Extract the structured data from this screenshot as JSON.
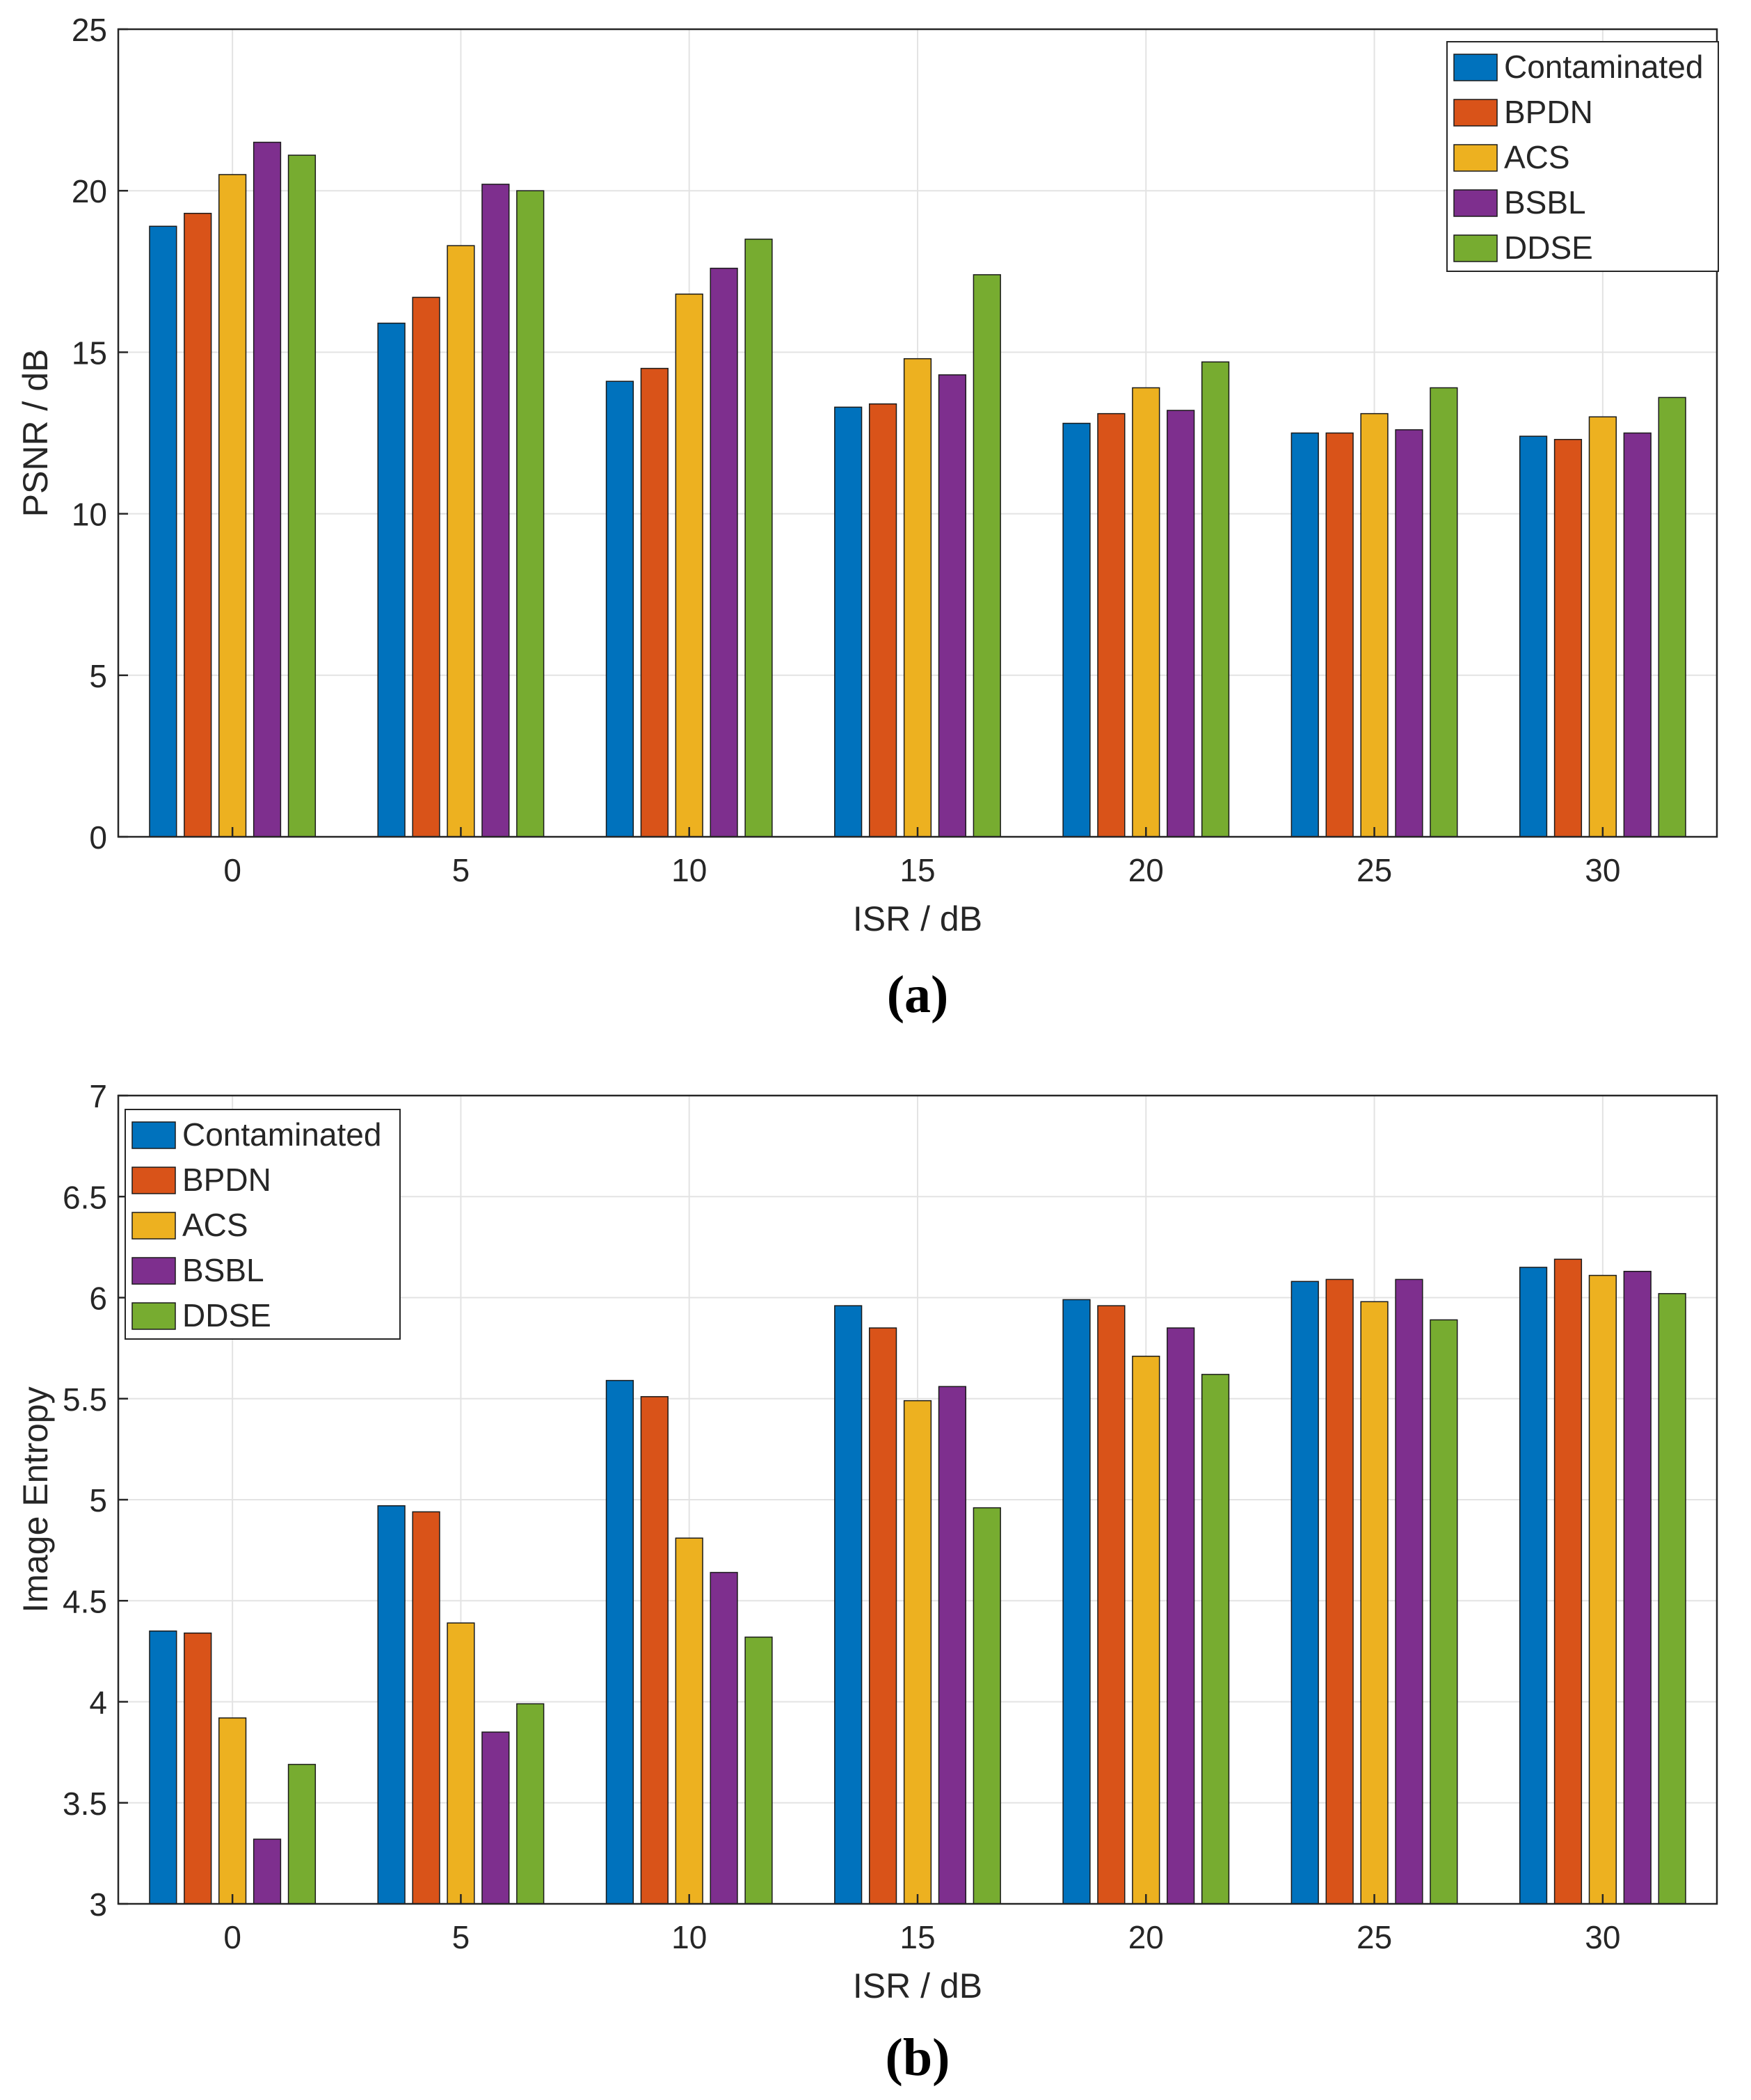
{
  "colors": [
    "#0072BD",
    "#D95319",
    "#EDB120",
    "#7E2F8E",
    "#77AC30"
  ],
  "chart_data": [
    {
      "type": "bar",
      "panel_label": "(a)",
      "xlabel": "ISR / dB",
      "ylabel": "PSNR / dB",
      "categories": [
        "0",
        "5",
        "10",
        "15",
        "20",
        "25",
        "30"
      ],
      "ylim": [
        0,
        25
      ],
      "yticks": [
        "0",
        "5",
        "10",
        "15",
        "20",
        "25"
      ],
      "grid": true,
      "legend_position": "top-right",
      "series": [
        {
          "name": "Contaminated",
          "values": [
            18.9,
            15.9,
            14.1,
            13.3,
            12.8,
            12.5,
            12.4
          ]
        },
        {
          "name": "BPDN",
          "values": [
            19.3,
            16.7,
            14.5,
            13.4,
            13.1,
            12.5,
            12.3
          ]
        },
        {
          "name": "ACS",
          "values": [
            20.5,
            18.3,
            16.8,
            14.8,
            13.9,
            13.1,
            13.0
          ]
        },
        {
          "name": "BSBL",
          "values": [
            21.5,
            20.2,
            17.6,
            14.3,
            13.2,
            12.6,
            12.5
          ]
        },
        {
          "name": "DDSE",
          "values": [
            21.1,
            20.0,
            18.5,
            17.4,
            14.7,
            13.9,
            13.6
          ]
        }
      ]
    },
    {
      "type": "bar",
      "panel_label": "(b)",
      "xlabel": "ISR / dB",
      "ylabel": "Image Entropy",
      "categories": [
        "0",
        "5",
        "10",
        "15",
        "20",
        "25",
        "30"
      ],
      "ylim": [
        3,
        7
      ],
      "yticks": [
        "3",
        "3.5",
        "4",
        "4.5",
        "5",
        "5.5",
        "6",
        "6.5",
        "7"
      ],
      "grid": true,
      "legend_position": "top-left",
      "series": [
        {
          "name": "Contaminated",
          "values": [
            4.35,
            4.97,
            5.59,
            5.96,
            5.99,
            6.08,
            6.15
          ]
        },
        {
          "name": "BPDN",
          "values": [
            4.34,
            4.94,
            5.51,
            5.85,
            5.96,
            6.09,
            6.19
          ]
        },
        {
          "name": "ACS",
          "values": [
            3.92,
            4.39,
            4.81,
            5.49,
            5.71,
            5.98,
            6.11
          ]
        },
        {
          "name": "BSBL",
          "values": [
            3.32,
            3.85,
            4.64,
            5.56,
            5.85,
            6.09,
            6.13
          ]
        },
        {
          "name": "DDSE",
          "values": [
            3.69,
            3.99,
            4.32,
            4.96,
            5.62,
            5.89,
            6.02
          ]
        }
      ]
    }
  ]
}
